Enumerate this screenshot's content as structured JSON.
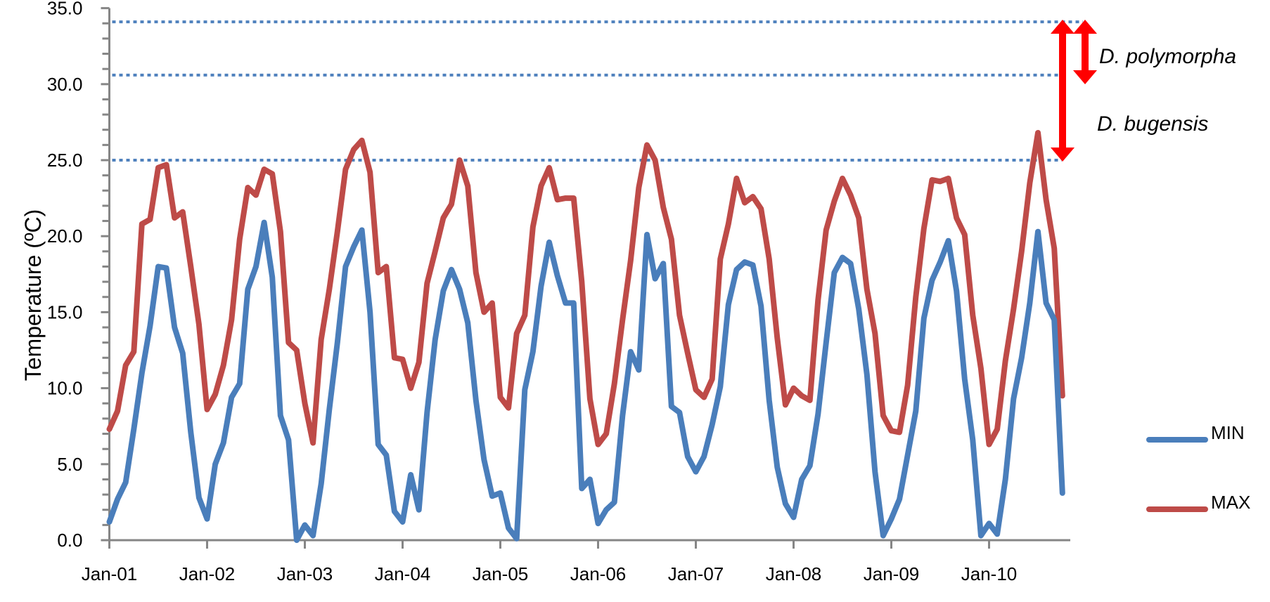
{
  "chart_data": {
    "type": "line",
    "title": "",
    "xlabel": "",
    "ylabel": "Temperature (ºC)",
    "ylim": [
      0,
      35
    ],
    "y_ticks": [
      "0.0",
      "5.0",
      "10.0",
      "15.0",
      "20.0",
      "25.0",
      "30.0",
      "35.0"
    ],
    "y_minor_tick_step": 1.0,
    "x_ticks": [
      "Jan-01",
      "Jan-02",
      "Jan-03",
      "Jan-04",
      "Jan-05",
      "Jan-06",
      "Jan-07",
      "Jan-08",
      "Jan-09",
      "Jan-10"
    ],
    "x_interval": "monthly",
    "grid": false,
    "legend_position": "right",
    "series": [
      {
        "name": "MIN",
        "color": "#4a7ebb",
        "values": [
          1.2,
          2.7,
          3.8,
          7.3,
          11.0,
          14.1,
          18.0,
          17.9,
          14.0,
          12.3,
          7.1,
          2.8,
          1.4,
          5.0,
          6.4,
          9.4,
          10.3,
          16.5,
          18.0,
          20.9,
          17.3,
          8.2,
          6.6,
          0.0,
          1.0,
          0.3,
          3.7,
          8.6,
          13.0,
          18.0,
          19.3,
          20.4,
          15.0,
          6.3,
          5.6,
          1.9,
          1.2,
          4.3,
          2.0,
          8.4,
          13.2,
          16.4,
          17.8,
          16.5,
          14.3,
          9.2,
          5.3,
          2.9,
          3.1,
          0.8,
          0.1,
          9.9,
          12.4,
          16.7,
          19.6,
          17.4,
          15.6,
          15.6,
          3.4,
          4.0,
          1.1,
          2.0,
          2.5,
          8.2,
          12.4,
          11.2,
          20.1,
          17.2,
          18.2,
          8.8,
          8.4,
          5.5,
          4.5,
          5.5,
          7.6,
          10.1,
          15.5,
          17.8,
          18.3,
          18.1,
          15.4,
          9.2,
          4.8,
          2.4,
          1.5,
          4.0,
          4.9,
          8.3,
          13.0,
          17.6,
          18.6,
          18.2,
          15.2,
          10.9,
          4.5,
          0.3,
          1.4,
          2.7,
          5.6,
          8.5,
          14.6,
          17.1,
          18.3,
          19.7,
          16.4,
          10.6,
          6.6,
          0.3,
          1.1,
          0.4,
          4.0,
          9.3,
          12.0,
          15.6,
          20.3,
          15.6,
          14.5,
          3.1
        ]
      },
      {
        "name": "MAX",
        "color": "#be4b48",
        "values": [
          7.3,
          8.5,
          11.5,
          12.4,
          20.8,
          21.1,
          24.5,
          24.7,
          21.2,
          21.6,
          18.0,
          14.2,
          8.6,
          9.6,
          11.5,
          14.5,
          19.8,
          23.2,
          22.7,
          24.4,
          24.1,
          20.3,
          13.0,
          12.5,
          9.0,
          6.4,
          13.2,
          16.5,
          20.3,
          24.4,
          25.7,
          26.3,
          24.2,
          17.6,
          18.0,
          12.0,
          11.9,
          10.0,
          11.7,
          16.9,
          19.0,
          21.2,
          22.1,
          25.0,
          23.3,
          17.6,
          15.0,
          15.6,
          9.4,
          8.7,
          13.6,
          14.8,
          20.6,
          23.3,
          24.5,
          22.4,
          22.5,
          22.5,
          17.0,
          9.3,
          6.3,
          7.0,
          10.3,
          14.5,
          18.4,
          23.2,
          26.0,
          25.0,
          21.9,
          19.8,
          14.8,
          12.3,
          9.9,
          9.4,
          10.6,
          18.5,
          20.8,
          23.8,
          22.2,
          22.6,
          21.8,
          18.5,
          13.3,
          8.9,
          10.0,
          9.5,
          9.2,
          15.8,
          20.4,
          22.3,
          23.8,
          22.7,
          21.2,
          16.5,
          13.6,
          8.2,
          7.2,
          7.1,
          10.2,
          16.0,
          20.5,
          23.7,
          23.6,
          23.8,
          21.2,
          20.1,
          14.8,
          11.3,
          6.3,
          7.3,
          11.8,
          15.2,
          19.0,
          23.5,
          26.8,
          22.4,
          19.2,
          9.5
        ]
      }
    ],
    "reference_lines": [
      {
        "value": 34.1,
        "style": "dotted",
        "color": "#4f81bd"
      },
      {
        "value": 30.6,
        "style": "dotted",
        "color": "#4f81bd"
      },
      {
        "value": 25.0,
        "style": "dotted",
        "color": "#4f81bd"
      }
    ],
    "annotations": [
      {
        "text": "D. polymorpha",
        "range": [
          30.6,
          34.1
        ],
        "arrow_color": "#ff0000"
      },
      {
        "text": "D. bugensis",
        "range": [
          25.0,
          34.1
        ],
        "arrow_color": "#ff0000"
      }
    ]
  },
  "legend": {
    "items": [
      {
        "label": "MIN",
        "color": "#4a7ebb"
      },
      {
        "label": "MAX",
        "color": "#be4b48"
      }
    ]
  },
  "style": {
    "axis_color": "#868686",
    "ref_line_color": "#4f81bd",
    "arrow_color": "#ff0000"
  }
}
